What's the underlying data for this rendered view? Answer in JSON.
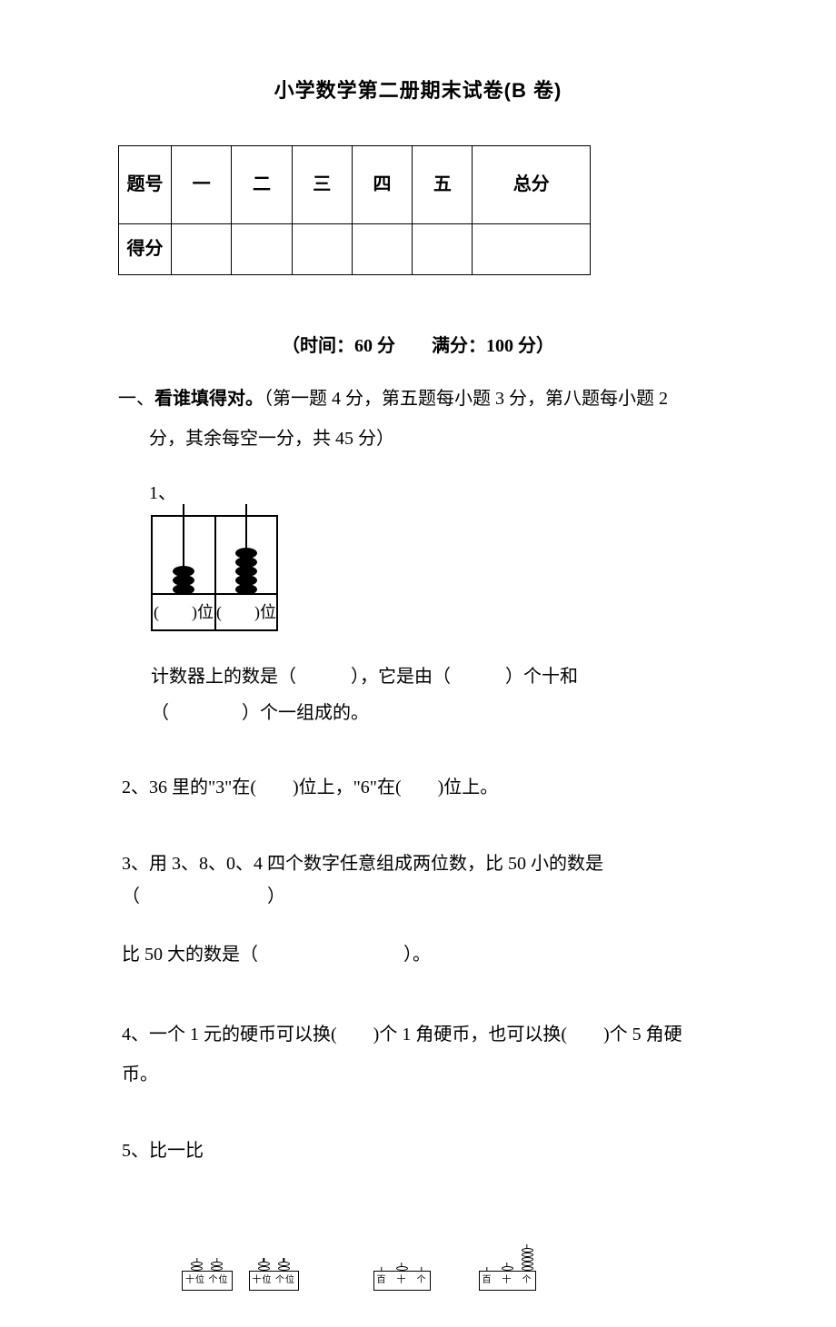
{
  "title": "小学数学第二册期末试卷(B 卷)",
  "score_table": {
    "headers": [
      "题号",
      "一",
      "二",
      "三",
      "四",
      "五",
      "总分"
    ],
    "row2_label": "得分"
  },
  "time_line": "（时间：60 分　　满分：100 分）",
  "section1": {
    "prefix": "一、",
    "bold": "看谁填得对。",
    "rest": "（第一题 4 分，第五题每小题 3 分，第八题每小题 2",
    "line2": "分，其余每空一分，共 45 分）"
  },
  "q1": {
    "num": "1、",
    "abacus": {
      "left_beads": 3,
      "right_beads": 5,
      "left_label": "(　　)位",
      "right_label": "(　　)位"
    },
    "text_line1": "计数器上的数是（　　　），它是由（　　　）个十和",
    "text_line2": "（　　　　）个一组成的。"
  },
  "q2": "2、36 里的\"3\"在(　　)位上，\"6\"在(　　)位上。",
  "q3_line1": "3、用 3、8、0、4 四个数字任意组成两位数，比 50 小的数是（　　　　　　　）",
  "q3_line2": "比 50 大的数是（　　　　　　　　）。",
  "q4": "4、一个 1 元的硬币可以换(　　)个 1 角硬币，也可以换(　　)个 5 角硬币。",
  "q5": {
    "label": "5、比一比",
    "pair1": {
      "a": {
        "cols": [
          2,
          2
        ],
        "labels": "十位 个位"
      },
      "b": {
        "cols": [
          2,
          2
        ],
        "labels": "十位 个位"
      }
    },
    "pair2": {
      "a": {
        "cols": [
          0,
          1,
          0
        ],
        "labels": "百　十　个"
      },
      "b": {
        "cols": [
          0,
          1,
          5
        ],
        "labels": "百　十　个"
      }
    }
  },
  "colors": {
    "text": "#000000",
    "bg": "#ffffff"
  }
}
